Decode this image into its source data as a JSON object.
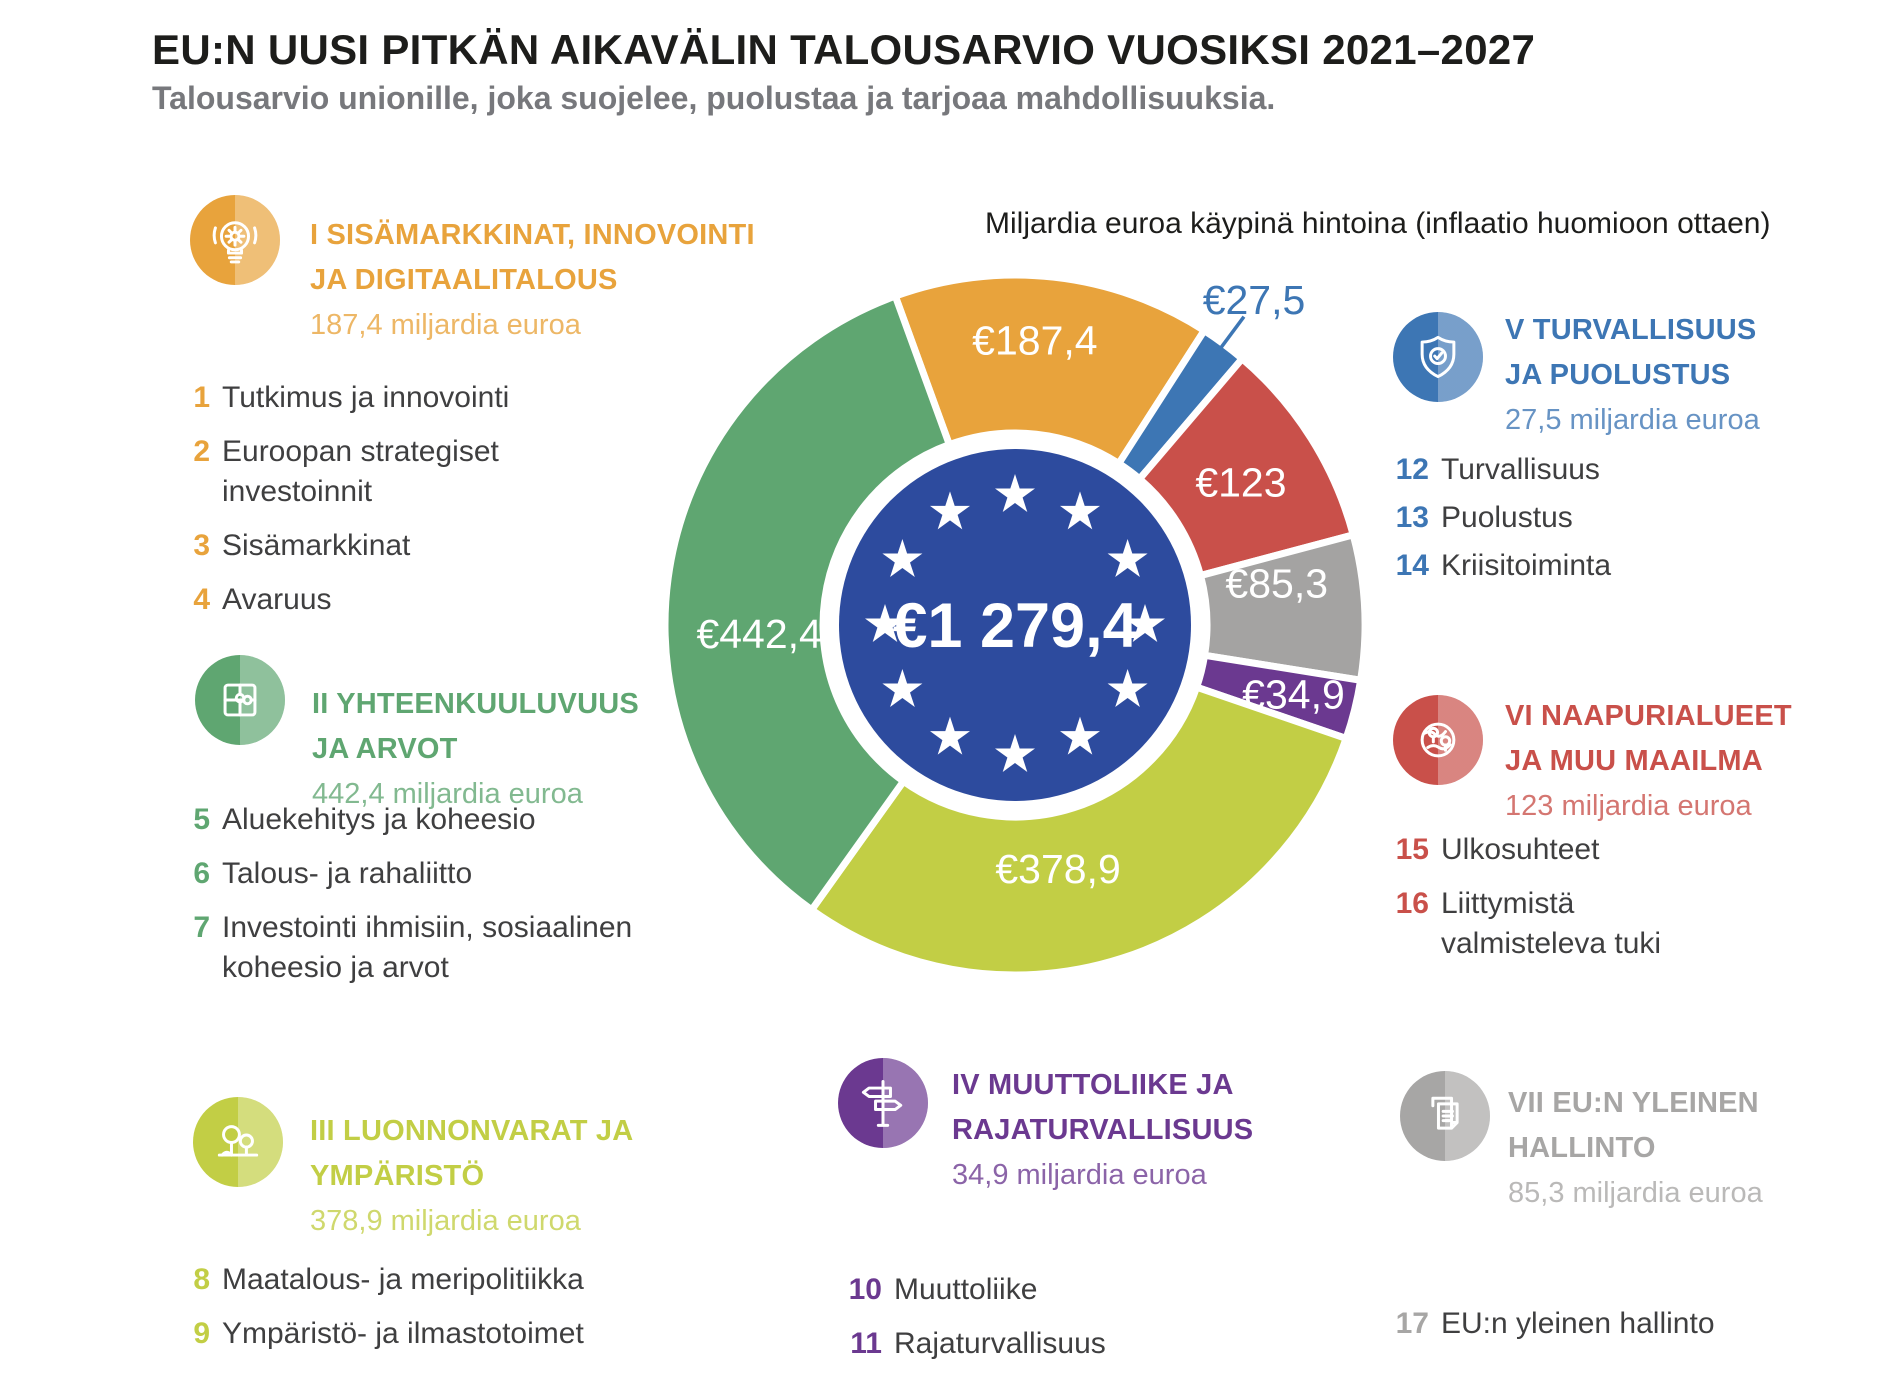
{
  "header": {
    "title": "EU:N UUSI PITKÄN AIKAVÄLIN TALOUSARVIO VUOSIKSI 2021–2027",
    "subtitle": "Talousarvio unionille, joka suojelee, puolustaa ja tarjoaa mahdollisuuksia."
  },
  "chart_data": {
    "type": "pie",
    "subtype": "donut",
    "note": "Miljardia euroa käypinä hintoina (inflaatio huomioon ottaen)",
    "center_label": "€1 279,4",
    "total": 1279.4,
    "unit": "miljardia euroa",
    "start_angle_deg": -20,
    "direction": "clockwise",
    "segments": [
      {
        "category": "I",
        "name": "Sisämarkkinat, innovointi ja digitaalitalous",
        "value": 187.4,
        "label": "€187,4",
        "color": "#E8A33C"
      },
      {
        "category": "V",
        "name": "Turvallisuus ja puolustus",
        "value": 27.5,
        "label": "€27,5",
        "color": "#3D76B4",
        "label_outside": true
      },
      {
        "category": "VI",
        "name": "Naapurialueet ja muu maailma",
        "value": 123,
        "label": "€123",
        "color": "#C9504A"
      },
      {
        "category": "VII",
        "name": "EU:n yleinen hallinto",
        "value": 85.3,
        "label": "€85,3",
        "color": "#A4A3A2"
      },
      {
        "category": "IV",
        "name": "Muuttoliike ja rajaturvallisuus",
        "value": 34.9,
        "label": "€34,9",
        "color": "#6B3990"
      },
      {
        "category": "III",
        "name": "Luonnonvarat ja ympäristö",
        "value": 378.9,
        "label": "€378,9",
        "color": "#C2CE45"
      },
      {
        "category": "II",
        "name": "Yhteenkuuluvuus ja arvot",
        "value": 442.4,
        "label": "€442,4",
        "color": "#5FA671"
      }
    ],
    "center_color": "#2D4B9E"
  },
  "blocks": [
    {
      "roman": "I",
      "title1": "I SISÄMARKKINAT, INNOVOINTI",
      "title2": "JA DIGITAALITALOUS",
      "amount": "187,4 miljardia euroa",
      "color": "#E8A33C",
      "icon": "lightbulb",
      "items": [
        {
          "n": "1",
          "t": "Tutkimus ja innovointi"
        },
        {
          "n": "2",
          "t": "Euroopan strategiset\ninvestoinnit"
        },
        {
          "n": "3",
          "t": "Sisämarkkinat"
        },
        {
          "n": "4",
          "t": "Avaruus"
        }
      ]
    },
    {
      "roman": "II",
      "title1": "II YHTEENKUULUVUUS",
      "title2": "JA ARVOT",
      "amount": "442,4 miljardia euroa",
      "color": "#5FA671",
      "icon": "puzzle",
      "items": [
        {
          "n": "5",
          "t": "Aluekehitys ja koheesio"
        },
        {
          "n": "6",
          "t": "Talous- ja rahaliitto"
        },
        {
          "n": "7",
          "t": "Investointi ihmisiin, sosiaalinen\nkoheesio ja arvot"
        }
      ]
    },
    {
      "roman": "III",
      "title1": "III LUONNONVARAT JA",
      "title2": "YMPÄRISTÖ",
      "amount": "378,9 miljardia euroa",
      "color": "#C2CE45",
      "icon": "trees",
      "items": [
        {
          "n": "8",
          "t": "Maatalous- ja meripolitiikka"
        },
        {
          "n": "9",
          "t": "Ympäristö- ja ilmastotoimet"
        }
      ]
    },
    {
      "roman": "IV",
      "title1": "IV MUUTTOLIIKE JA",
      "title2": "RAJATURVALLISUUS",
      "amount": "34,9 miljardia euroa",
      "color": "#6B3990",
      "icon": "signpost",
      "items": [
        {
          "n": "10",
          "t": "Muuttoliike"
        },
        {
          "n": "11",
          "t": "Rajaturvallisuus"
        }
      ]
    },
    {
      "roman": "V",
      "title1": "V TURVALLISUUS",
      "title2": "JA PUOLUSTUS",
      "amount": "27,5 miljardia euroa",
      "color": "#3D76B4",
      "icon": "shield",
      "items": [
        {
          "n": "12",
          "t": "Turvallisuus"
        },
        {
          "n": "13",
          "t": "Puolustus"
        },
        {
          "n": "14",
          "t": "Kriisitoiminta"
        }
      ]
    },
    {
      "roman": "VI",
      "title1": "VI NAAPURIALUEET",
      "title2": "JA MUU MAAILMA",
      "amount": "123 miljardia euroa",
      "color": "#C9504A",
      "icon": "globe",
      "items": [
        {
          "n": "15",
          "t": "Ulkosuhteet"
        },
        {
          "n": "16",
          "t": "Liittymistä\nvalmisteleva tuki"
        }
      ]
    },
    {
      "roman": "VII",
      "title1": "VII EU:N YLEINEN",
      "title2": "HALLINTO",
      "amount": "85,3 miljardia euroa",
      "color": "#A7A6A5",
      "icon": "documents",
      "items": [
        {
          "n": "17",
          "t": "EU:n yleinen hallinto"
        }
      ]
    }
  ]
}
